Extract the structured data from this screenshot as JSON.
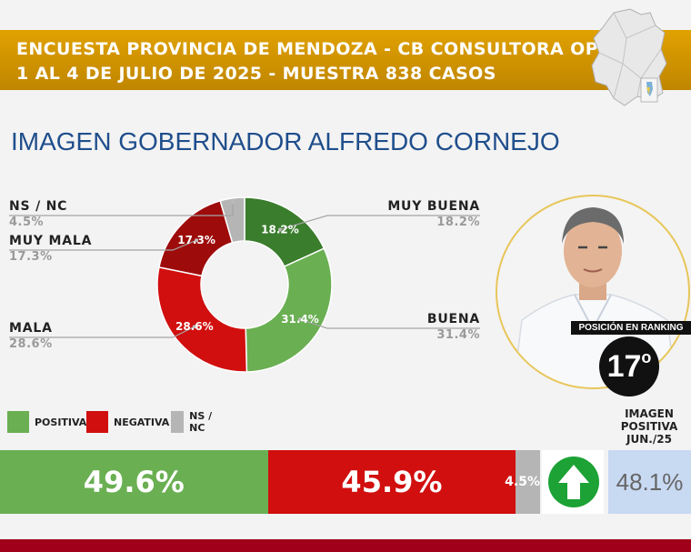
{
  "header": {
    "line1": "ENCUESTA PROVINCIA DE MENDOZA - CB CONSULTORA OP",
    "line2": "1 AL 4 DE JULIO DE 2025 - MUESTRA 838 CASOS"
  },
  "title": "IMAGEN GOBERNADOR  ALFREDO CORNEJO",
  "chart_data": {
    "type": "pie",
    "title": "IMAGEN GOBERNADOR  ALFREDO CORNEJO",
    "slices": [
      {
        "label": "MUY BUENA",
        "value": 18.2,
        "value_label": "18.2%",
        "color": "#3a7d2c"
      },
      {
        "label": "BUENA",
        "value": 31.4,
        "value_label": "31.4%",
        "color": "#6aaf52"
      },
      {
        "label": "MALA",
        "value": 28.6,
        "value_label": "28.6%",
        "color": "#d10f0f"
      },
      {
        "label": "MUY MALA",
        "value": 17.3,
        "value_label": "17.3%",
        "color": "#9e0b0b"
      },
      {
        "label": "NS / NC",
        "value": 4.5,
        "value_label": "4.5%",
        "color": "#b5b5b5"
      }
    ],
    "outer_labels": {
      "muy_buena": {
        "name": "MUY BUENA",
        "value": "18.2%"
      },
      "buena": {
        "name": "BUENA",
        "value": "31.4%"
      },
      "mala": {
        "name": "MALA",
        "value": "28.6%"
      },
      "muy_mala": {
        "name": "MUY MALA",
        "value": "17.3%"
      },
      "nsnc": {
        "name": "NS / NC",
        "value": "4.5%"
      }
    }
  },
  "legend": {
    "positiva": {
      "label": "POSITIVA",
      "color": "#6aaf52"
    },
    "negativa": {
      "label": "NEGATIVA",
      "color": "#d10f0f"
    },
    "nsnc": {
      "label": "NS / NC",
      "color": "#b5b5b5"
    }
  },
  "summary": [
    {
      "label": "POSITIVA",
      "value": 49.6,
      "text": "49.6%",
      "color": "#6aaf52"
    },
    {
      "label": "NEGATIVA",
      "value": 45.9,
      "text": "45.9%",
      "color": "#d10f0f"
    },
    {
      "label": "NS / NC",
      "value": 4.5,
      "text": "4.5%",
      "color": "#b5b5b5"
    }
  ],
  "ranking": {
    "label": "POSICIÓN EN RANKING",
    "position": "17",
    "suffix": "o"
  },
  "previous": {
    "label_line1": "IMAGEN",
    "label_line2": "POSITIVA",
    "label_line3": "JUN./25",
    "value": "48.1%"
  },
  "trend_icon": "up-arrow-icon",
  "colors": {
    "header": "#d19600",
    "title": "#1f4e8c",
    "bottom_bar": "#a0001a",
    "trend": "#1ca235"
  }
}
